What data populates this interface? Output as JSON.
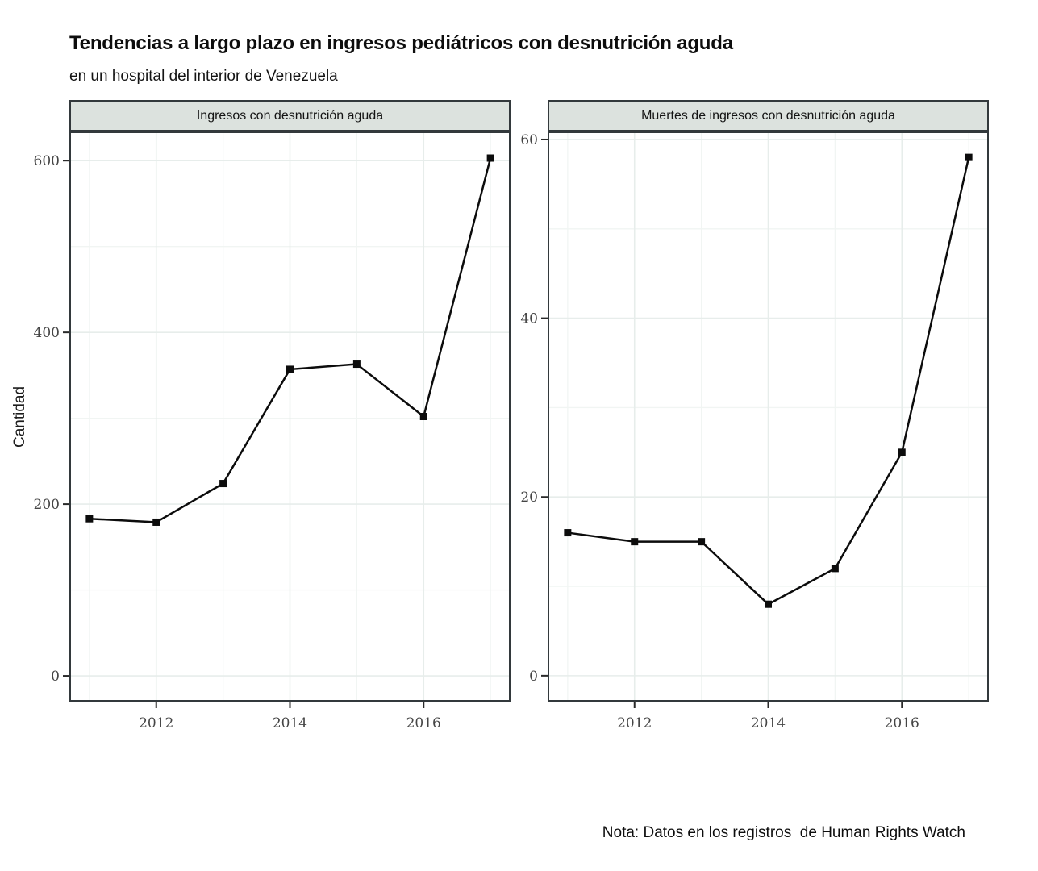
{
  "header": {
    "title": "Tendencias a largo plazo en ingresos pediátricos con desnutrición aguda",
    "subtitle": "en un hospital del interior de Venezuela"
  },
  "y_axis_label": "Cantidad",
  "note": "Nota: Datos en los registros  de Human Rights Watch",
  "colors": {
    "strip_fill": "#dce2de",
    "panel_border": "#33393c",
    "grid_major": "#e7edeb",
    "grid_minor": "#f1f5f3",
    "line": "#0c0c0c",
    "marker": "#0c0c0c",
    "tick_mark": "#2a2a2a",
    "tick_text": "#454545"
  },
  "chart_data": [
    {
      "type": "line",
      "panel_title": "Ingresos con desnutrición aguda",
      "x": [
        2011,
        2012,
        2013,
        2014,
        2015,
        2016,
        2017
      ],
      "values": [
        183,
        179,
        224,
        357,
        363,
        302,
        603
      ],
      "xlabel": "",
      "ylabel": "Cantidad",
      "xlim": [
        2010.7,
        2017.3
      ],
      "ylim": [
        -30,
        634
      ],
      "x_ticks": [
        2012,
        2014,
        2016
      ],
      "x_tick_labels": [
        "2012",
        "2014",
        "2016"
      ],
      "x_grid_minor": [
        2011,
        2013,
        2015,
        2017
      ],
      "y_ticks": [
        0,
        200,
        400,
        600
      ],
      "y_tick_labels": [
        "0",
        "200",
        "400",
        "600"
      ],
      "y_grid_minor": [
        100,
        300,
        500
      ],
      "grid": true,
      "legend": false
    },
    {
      "type": "line",
      "panel_title": "Muertes de ingresos con desnutrición aguda",
      "x": [
        2011,
        2012,
        2013,
        2014,
        2015,
        2016,
        2017
      ],
      "values": [
        16,
        15,
        15,
        8,
        12,
        25,
        58
      ],
      "xlabel": "",
      "ylabel": "Cantidad",
      "xlim": [
        2010.7,
        2017.3
      ],
      "ylim": [
        -2.9,
        60.9
      ],
      "x_ticks": [
        2012,
        2014,
        2016
      ],
      "x_tick_labels": [
        "2012",
        "2014",
        "2016"
      ],
      "x_grid_minor": [
        2011,
        2013,
        2015,
        2017
      ],
      "y_ticks": [
        0,
        20,
        40,
        60
      ],
      "y_tick_labels": [
        "0",
        "20",
        "40",
        "60"
      ],
      "y_grid_minor": [
        10,
        30,
        50
      ],
      "grid": true,
      "legend": false
    }
  ]
}
